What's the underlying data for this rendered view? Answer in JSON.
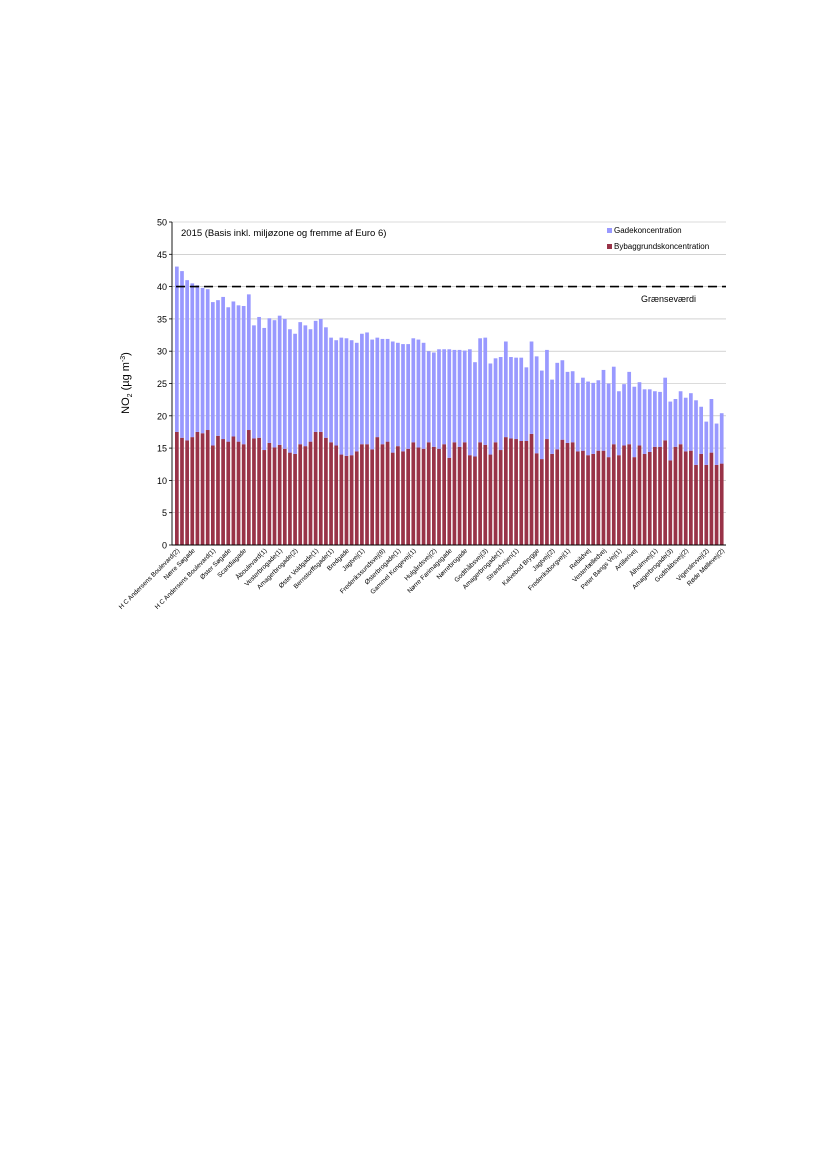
{
  "chart_data": {
    "type": "bar",
    "stacked": true,
    "title": "2015 (Basis inkl. miljøzone og fremme af Euro 6)",
    "ylabel_main": "NO",
    "ylabel_sub": "2",
    "ylabel_unit": " (µg m",
    "ylabel_sup": "-3",
    "ylabel_close": ")",
    "ylim": [
      0,
      50
    ],
    "yticks": [
      0,
      5,
      10,
      15,
      20,
      25,
      30,
      35,
      40,
      45,
      50
    ],
    "grid": true,
    "legend_position": "top-right",
    "threshold": {
      "value": 40,
      "label": "Grænseværdi"
    },
    "series": [
      {
        "name": "Gadekoncentration",
        "color": "#9999ff",
        "values": [
          25.6,
          25.8,
          24.8,
          23.8,
          22.7,
          22.5,
          21.8,
          22.2,
          21.0,
          22.0,
          20.8,
          20.9,
          21.1,
          21.4,
          21.0,
          17.5,
          18.7,
          18.9,
          19.3,
          19.7,
          20.0,
          20.1,
          19.1,
          18.6,
          18.9,
          18.7,
          17.4,
          17.2,
          17.5,
          17.1,
          16.2,
          16.3,
          18.1,
          18.2,
          17.8,
          16.8,
          17.1,
          17.3,
          17.0,
          15.4,
          16.3,
          15.9,
          17.2,
          16.0,
          16.6,
          16.2,
          16.1,
          16.7,
          16.4,
          14.1,
          14.6,
          15.4,
          14.7,
          16.8,
          14.3,
          15.0,
          14.2,
          16.4,
          14.6,
          16.1,
          16.6,
          14.1,
          13.0,
          14.4,
          14.8,
          12.6,
          12.6,
          12.9,
          11.4,
          14.3,
          15.0,
          13.7,
          13.8,
          11.5,
          13.4,
          12.3,
          11.0,
          11.0,
          10.6,
          11.3,
          11.4,
          11.0,
          10.9,
          12.5,
          11.4,
          12.0,
          9.9,
          9.5,
          11.2,
          10.9,
          9.8,
          10.0,
          9.7,
          8.6,
          8.5,
          9.7,
          9.1,
          7.4,
          8.2,
          8.3,
          8.9,
          10.0,
          7.3,
          6.7,
          8.3,
          6.4,
          7.8
        ],
        "names": [],
        "show": true
      },
      {
        "name": "Bybaggrundskoncentration",
        "color": "#993348",
        "values": [
          17.5,
          16.6,
          16.2,
          16.7,
          17.5,
          17.3,
          17.8,
          15.4,
          16.9,
          16.4,
          16.0,
          16.8,
          16.0,
          15.6,
          17.8,
          16.5,
          16.6,
          14.7,
          15.8,
          15.1,
          15.5,
          14.9,
          14.3,
          14.1,
          15.6,
          15.3,
          16.0,
          17.5,
          17.5,
          16.6,
          15.9,
          15.4,
          14.0,
          13.8,
          13.9,
          14.5,
          15.6,
          15.6,
          14.8,
          16.7,
          15.6,
          16.0,
          14.3,
          15.3,
          14.5,
          14.9,
          15.9,
          15.1,
          14.9,
          15.9,
          15.2,
          14.9,
          15.6,
          13.5,
          15.9,
          15.2,
          15.9,
          13.9,
          13.7,
          15.9,
          15.5,
          14.0,
          15.9,
          14.7,
          16.7,
          16.5,
          16.4,
          16.1,
          16.1,
          17.2,
          14.2,
          13.3,
          16.4,
          14.1,
          14.8,
          16.3,
          15.8,
          15.9,
          14.5,
          14.6,
          13.9,
          14.1,
          14.6,
          14.6,
          13.6,
          15.6,
          13.9,
          15.4,
          15.6,
          13.6,
          15.4,
          14.1,
          14.4,
          15.2,
          15.2,
          16.2,
          13.1,
          15.2,
          15.6,
          14.5,
          14.6,
          12.4,
          14.1,
          12.4,
          14.3,
          12.4,
          12.6
        ]
      }
    ],
    "category_labels": [
      "H C Andersens Boulevard(2)",
      "Nørre Søgade",
      "H C Andersens Boulevard(1)",
      "Øster Søgade",
      "Scandiagade",
      "Åboulevard(1)",
      "Vesterbrogade(1)",
      "Amagerbrogade(2)",
      "Øster Voldgade(1)",
      "Bernstorffsgade(1)",
      "Bredgade",
      "Jagtvej(1)",
      "Frederikssundsvej(8)",
      "Østerbrogade(1)",
      "Gammel Kongevej(1)",
      "Hulgårdsvej(2)",
      "Nørre Farimagsgade",
      "Nørrebrogade",
      "Godthåbsvej(3)",
      "Amagerbrogade(1)",
      "Strandvejen(1)",
      "Kalvebod Brygge",
      "Jagtvej(2)",
      "Frederiksborgvej(1)",
      "Rebildvej",
      "Vesterfælledvej",
      "Peter Bangs Vej(1)",
      "Artillerivej",
      "Ålholmvej(1)",
      "Amagerbrogade(3)",
      "Godthåbsvej(2)",
      "Vigerslevvej(2)",
      "Røde Møllevej(2)"
    ]
  },
  "legend": {
    "item1": "Gadekoncentration",
    "item2": "Bybaggrundskoncentration"
  }
}
